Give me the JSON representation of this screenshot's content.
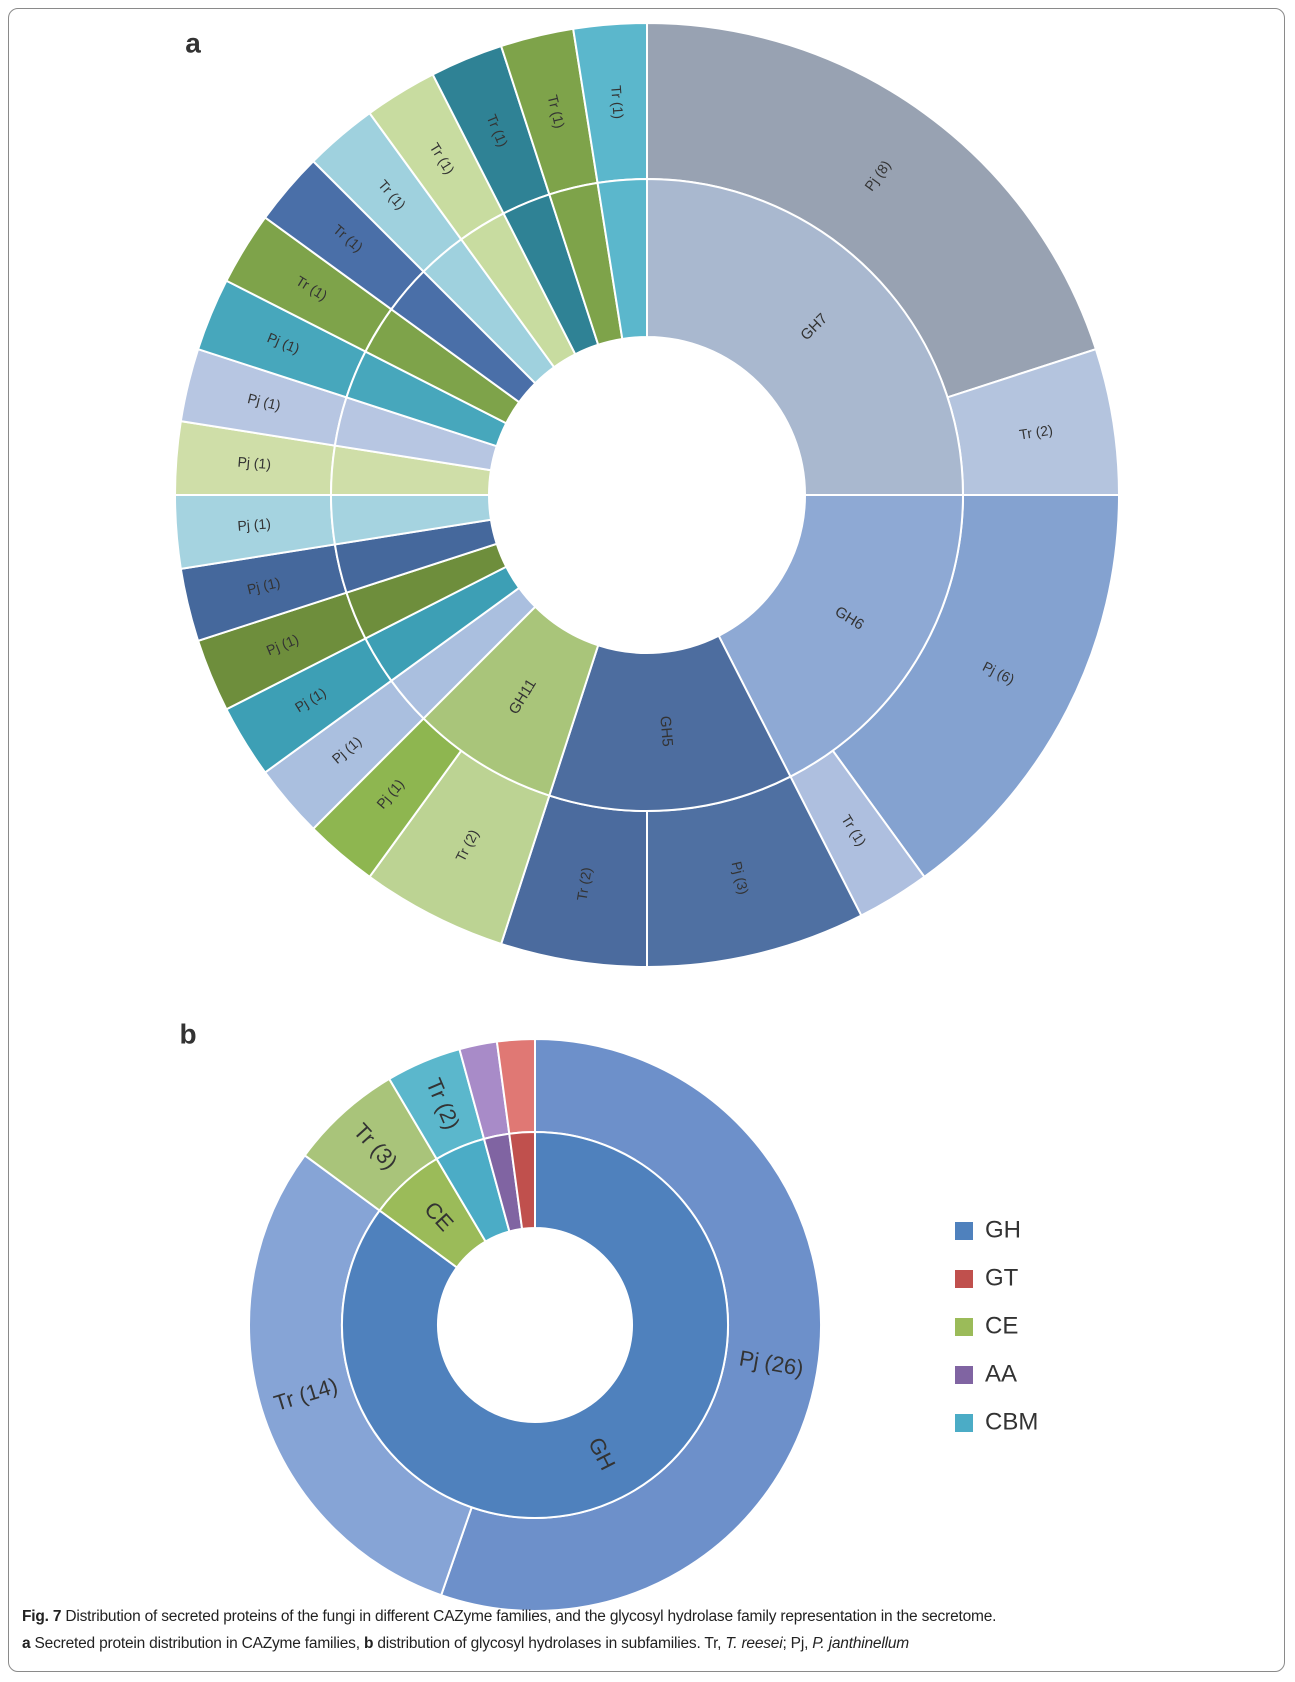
{
  "chart_data": [
    {
      "type": "sunburst",
      "panel_label": "a",
      "families": [
        {
          "name": "GH7",
          "color": "#a9b8cf"
        },
        {
          "name": "GH6",
          "color": "#8ea9d4"
        },
        {
          "name": "GH5",
          "color": "#4d6d9f"
        },
        {
          "name": "GH11",
          "color": "#a9c57a"
        },
        {
          "name": null,
          "color": "#aabfdf"
        },
        {
          "name": null,
          "color": "#3d9fb5"
        },
        {
          "name": null,
          "color": "#6e8e3c"
        },
        {
          "name": null,
          "color": "#45689c"
        },
        {
          "name": null,
          "color": "#a5d3e0"
        },
        {
          "name": null,
          "color": "#cfdea8"
        },
        {
          "name": null,
          "color": "#b7c6e2"
        },
        {
          "name": null,
          "color": "#47a7bc"
        },
        {
          "name": null,
          "color": "#7ea34a"
        },
        {
          "name": null,
          "color": "#4a6fa8"
        },
        {
          "name": null,
          "color": "#9fd1de"
        },
        {
          "name": null,
          "color": "#c8dca0"
        },
        {
          "name": null,
          "color": "#2f8295"
        },
        {
          "name": null,
          "color": "#7ea34a"
        },
        {
          "name": null,
          "color": "#5bb7cc"
        }
      ],
      "segments": {
        "family": [
          0,
          0,
          1,
          1,
          2,
          2,
          3,
          3,
          4,
          5,
          6,
          7,
          8,
          9,
          10,
          11,
          12,
          13,
          14,
          15,
          16,
          17,
          18
        ],
        "values": [
          8,
          2,
          6,
          1,
          3,
          2,
          2,
          1,
          1,
          1,
          1,
          1,
          1,
          1,
          1,
          1,
          1,
          1,
          1,
          1,
          1,
          1,
          1
        ],
        "value_labels": [
          "Pj (8)",
          "Tr (2)",
          "Pj (6)",
          "Tr (1)",
          "Pj (3)",
          "Tr (2)",
          "Tr (2)",
          "Pj (1)",
          "Pj (1)",
          "Pj (1)",
          "Pj (1)",
          "Pj (1)",
          "Pj (1)",
          "Pj (1)",
          "Pj (1)",
          "Pj (1)",
          "Tr (1)",
          "Tr (1)",
          "Tr (1)",
          "Tr (1)",
          "Tr (1)",
          "Tr (1)",
          "Tr (1)"
        ],
        "colors": [
          "#98a2b2",
          "#b4c4de",
          "#84a2d0",
          "#aebfdf",
          "#4f70a2",
          "#4b6b9e",
          "#bcd393",
          "#8eb650",
          "#aabfdf",
          "#3d9fb5",
          "#6e8e3c",
          "#45689c",
          "#a5d3e0",
          "#cfdea8",
          "#b7c6e2",
          "#47a7bc",
          "#7ea34a",
          "#4a6fa8",
          "#9fd1de",
          "#c8dca0",
          "#2f8295",
          "#7ea34a",
          "#5bb7cc"
        ]
      }
    },
    {
      "type": "sunburst",
      "panel_label": "b",
      "legend": "right",
      "families": [
        {
          "name": "GH",
          "color": "#4f81bd"
        },
        {
          "name": "GT",
          "color": "#c0504d"
        },
        {
          "name": "CE",
          "color": "#9bbb59"
        },
        {
          "name": "AA",
          "color": "#8064a2"
        },
        {
          "name": "CBM",
          "color": "#4bacc6"
        }
      ],
      "segments": {
        "family": [
          0,
          0,
          2,
          4,
          3,
          1
        ],
        "values": [
          26,
          14,
          3,
          2,
          1,
          1
        ],
        "value_labels": [
          "Pj (26)",
          "Tr (14)",
          "Tr (3)",
          "Tr (2)",
          null,
          null
        ],
        "colors": [
          "#6d90ca",
          "#86a4d6",
          "#a9c47a",
          "#5bb7cc",
          "#a88bc8",
          "#e07874"
        ]
      }
    }
  ],
  "caption": [
    "Fig. 7",
    "Distribution of secreted proteins of the fungi in different CAZyme families, and the glycosyl hydrolase family representation in the secretome.",
    "a",
    "Secreted protein distribution in CAZyme families,",
    "b",
    "distribution of glycosyl hydrolases in subfamilies. Tr,",
    "T. reesei",
    "; Pj,",
    "P. janthinellum"
  ]
}
